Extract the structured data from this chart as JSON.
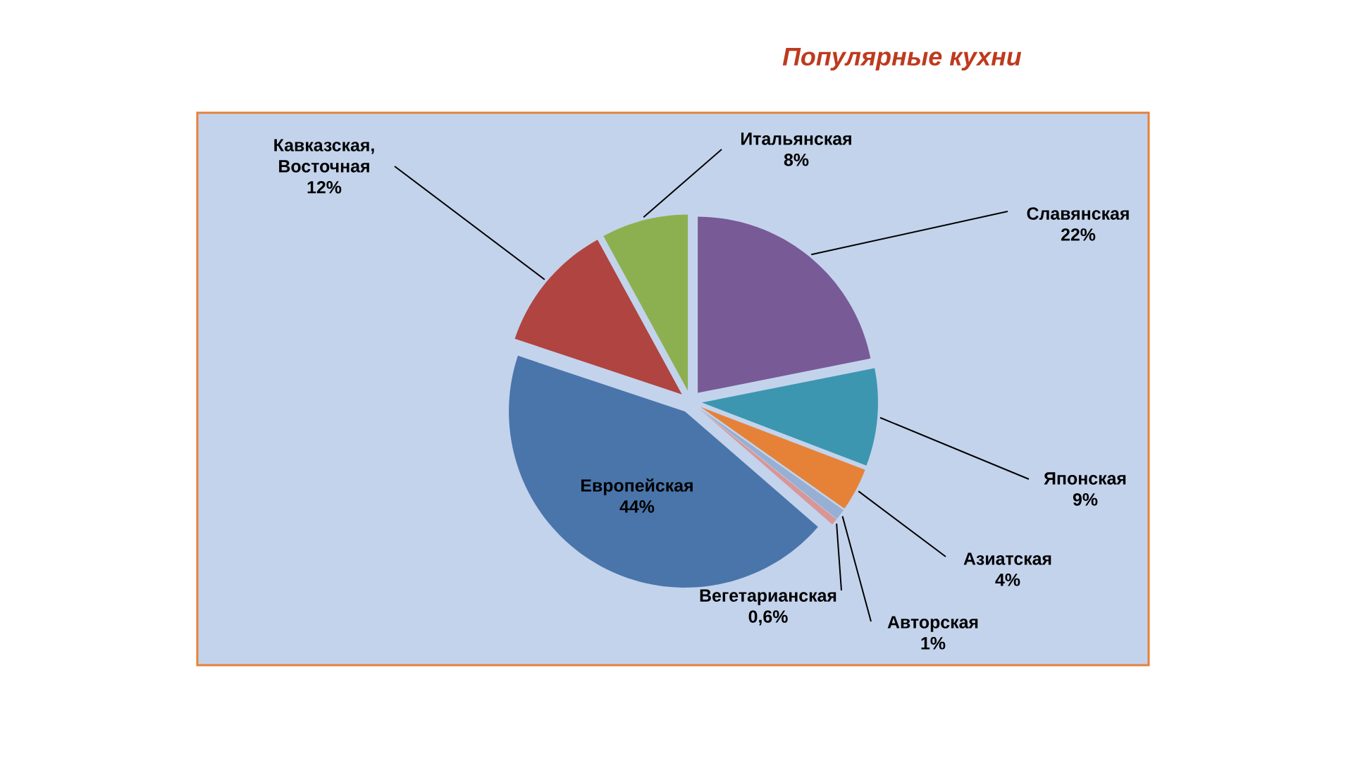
{
  "chart_data": {
    "type": "pie",
    "title": "Популярные кухни",
    "categories": [
      "Славянская",
      "Японская",
      "Азиатская",
      "Авторская",
      "Вегетарианская",
      "Европейская",
      "Кавказская, Восточная",
      "Итальянская"
    ],
    "values": [
      22,
      9,
      4,
      1,
      0.6,
      44,
      12,
      8
    ],
    "value_labels": [
      "22%",
      "9%",
      "4%",
      "1%",
      "0,6%",
      "44%",
      "12%",
      "8%"
    ],
    "colors": [
      "#785a96",
      "#3c96af",
      "#e68237",
      "#96afd2",
      "#d99696",
      "#4a75aa",
      "#b04440",
      "#8cb050"
    ]
  }
}
